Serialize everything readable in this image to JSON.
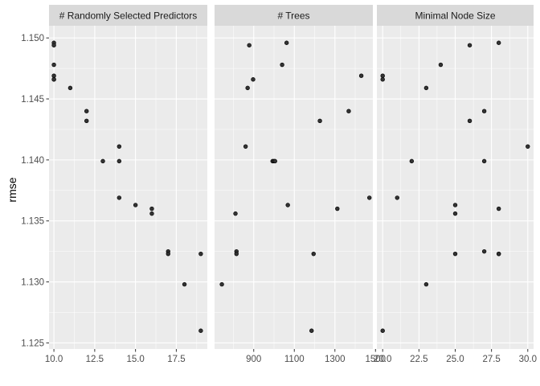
{
  "chart_data": {
    "type": "scatter",
    "layout": "faceted",
    "ylabel": "rmse",
    "ylim": [
      1.1245,
      1.151
    ],
    "yticks": [
      1.125,
      1.13,
      1.135,
      1.14,
      1.145,
      1.15
    ],
    "ytick_labels": [
      "1.125",
      "1.130",
      "1.135",
      "1.140",
      "1.145",
      "1.150"
    ],
    "grid": true,
    "background": "#ebebeb",
    "strip_color": "#d9d9d9",
    "point_color": "#333333",
    "panels": [
      {
        "title": "# Randomly Selected Predictors",
        "xlim": [
          9.7,
          19.4
        ],
        "xticks": [
          10,
          12.5,
          15,
          17.5
        ],
        "xtick_labels": [
          "10.0",
          "12.5",
          "15.0",
          "17.5"
        ],
        "x": [
          10,
          10,
          10,
          10,
          10,
          10,
          11,
          12,
          12,
          13,
          14,
          14,
          14,
          15,
          16,
          16,
          17,
          17,
          18,
          19,
          19
        ],
        "y": [
          1.1496,
          1.1494,
          1.1478,
          1.1469,
          1.1466,
          1.1466,
          1.1459,
          1.144,
          1.1432,
          1.1399,
          1.1411,
          1.1399,
          1.1369,
          1.1363,
          1.136,
          1.1356,
          1.1325,
          1.1323,
          1.1298,
          1.1323,
          1.126
        ]
      },
      {
        "title": "# Trees",
        "xlim": [
          707,
          1487
        ],
        "xticks": [
          900,
          1100,
          1300,
          1500
        ],
        "xtick_labels": [
          "900",
          "1100",
          "1300",
          "1500"
        ],
        "x": [
          743,
          810,
          815,
          815,
          860,
          870,
          878,
          897,
          993,
          1000,
          1005,
          1040,
          1062,
          1068,
          1185,
          1195,
          1226,
          1312,
          1368,
          1430,
          1470
        ],
        "y": [
          1.1298,
          1.1356,
          1.1325,
          1.1323,
          1.1411,
          1.1459,
          1.1494,
          1.1466,
          1.1399,
          1.1399,
          1.1399,
          1.1478,
          1.1496,
          1.1363,
          1.126,
          1.1323,
          1.1432,
          1.136,
          1.144,
          1.1469,
          1.1369
        ]
      },
      {
        "title": "Minimal Node Size",
        "xlim": [
          19.6,
          30.4
        ],
        "xticks": [
          20,
          22.5,
          25,
          27.5,
          30
        ],
        "xtick_labels": [
          "20.0",
          "22.5",
          "25.0",
          "27.5",
          "30.0"
        ],
        "x": [
          20,
          20,
          20,
          21,
          22,
          23,
          23,
          24,
          25,
          25,
          25,
          26,
          26,
          27,
          27,
          27,
          28,
          28,
          28,
          28,
          30
        ],
        "y": [
          1.1469,
          1.1466,
          1.126,
          1.1369,
          1.1399,
          1.1459,
          1.1298,
          1.1478,
          1.1363,
          1.1356,
          1.1323,
          1.1494,
          1.1432,
          1.144,
          1.1399,
          1.1325,
          1.1496,
          1.136,
          1.1323,
          1.1323,
          1.1411
        ]
      }
    ]
  }
}
